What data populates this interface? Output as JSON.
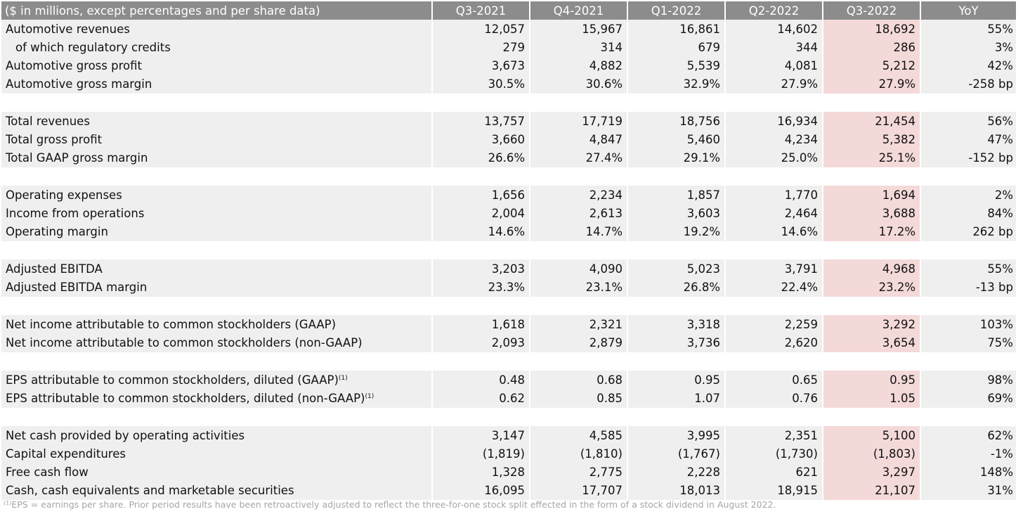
{
  "table": {
    "header_label": "($ in millions, except percentages and per share data)",
    "columns": [
      "Q3-2021",
      "Q4-2021",
      "Q1-2022",
      "Q2-2022",
      "Q3-2022",
      "YoY"
    ],
    "highlight_column": "Q3-2022",
    "colors": {
      "header_bg": "#8c8c8c",
      "row_bg": "#efefef",
      "highlight_bg": "#f4d9d9"
    },
    "groups": [
      {
        "rows": [
          {
            "label": "Automotive revenues",
            "values": [
              "12,057",
              "15,967",
              "16,861",
              "14,602",
              "18,692",
              "55%"
            ]
          },
          {
            "label": "of which regulatory credits",
            "indent": true,
            "values": [
              "279",
              "314",
              "679",
              "344",
              "286",
              "3%"
            ]
          },
          {
            "label": "Automotive gross profit",
            "values": [
              "3,673",
              "4,882",
              "5,539",
              "4,081",
              "5,212",
              "42%"
            ]
          },
          {
            "label": "Automotive gross margin",
            "values": [
              "30.5%",
              "30.6%",
              "32.9%",
              "27.9%",
              "27.9%",
              "-258 bp"
            ]
          }
        ]
      },
      {
        "rows": [
          {
            "label": "Total revenues",
            "values": [
              "13,757",
              "17,719",
              "18,756",
              "16,934",
              "21,454",
              "56%"
            ]
          },
          {
            "label": "Total gross profit",
            "values": [
              "3,660",
              "4,847",
              "5,460",
              "4,234",
              "5,382",
              "47%"
            ]
          },
          {
            "label": "Total GAAP gross margin",
            "values": [
              "26.6%",
              "27.4%",
              "29.1%",
              "25.0%",
              "25.1%",
              "-152 bp"
            ]
          }
        ]
      },
      {
        "rows": [
          {
            "label": "Operating expenses",
            "values": [
              "1,656",
              "2,234",
              "1,857",
              "1,770",
              "1,694",
              "2%"
            ]
          },
          {
            "label": "Income from operations",
            "values": [
              "2,004",
              "2,613",
              "3,603",
              "2,464",
              "3,688",
              "84%"
            ]
          },
          {
            "label": "Operating margin",
            "values": [
              "14.6%",
              "14.7%",
              "19.2%",
              "14.6%",
              "17.2%",
              "262 bp"
            ]
          }
        ]
      },
      {
        "rows": [
          {
            "label": "Adjusted EBITDA",
            "values": [
              "3,203",
              "4,090",
              "5,023",
              "3,791",
              "4,968",
              "55%"
            ]
          },
          {
            "label": "Adjusted EBITDA margin",
            "values": [
              "23.3%",
              "23.1%",
              "26.8%",
              "22.4%",
              "23.2%",
              "-13 bp"
            ]
          }
        ]
      },
      {
        "rows": [
          {
            "label": "Net income attributable to common stockholders (GAAP)",
            "values": [
              "1,618",
              "2,321",
              "3,318",
              "2,259",
              "3,292",
              "103%"
            ]
          },
          {
            "label": "Net income attributable to common stockholders (non-GAAP)",
            "values": [
              "2,093",
              "2,879",
              "3,736",
              "2,620",
              "3,654",
              "75%"
            ]
          }
        ]
      },
      {
        "rows": [
          {
            "label": "EPS attributable to common stockholders, diluted (GAAP)",
            "sup": "(1)",
            "values": [
              "0.48",
              "0.68",
              "0.95",
              "0.65",
              "0.95",
              "98%"
            ]
          },
          {
            "label": "EPS attributable to common stockholders, diluted (non-GAAP)",
            "sup": "(1)",
            "values": [
              "0.62",
              "0.85",
              "1.07",
              "0.76",
              "1.05",
              "69%"
            ]
          }
        ]
      },
      {
        "rows": [
          {
            "label": "Net cash provided by operating activities",
            "values": [
              "3,147",
              "4,585",
              "3,995",
              "2,351",
              "5,100",
              "62%"
            ]
          },
          {
            "label": "Capital expenditures",
            "values": [
              "(1,819)",
              "(1,810)",
              "(1,767)",
              "(1,730)",
              "(1,803)",
              "-1%"
            ]
          },
          {
            "label": "Free cash flow",
            "values": [
              "1,328",
              "2,775",
              "2,228",
              "621",
              "3,297",
              "148%"
            ]
          },
          {
            "label": "Cash, cash equivalents and marketable securities",
            "values": [
              "16,095",
              "17,707",
              "18,013",
              "18,915",
              "21,107",
              "31%"
            ]
          }
        ]
      }
    ]
  },
  "footnote": {
    "marker": "(1)",
    "text": "EPS = earnings per share. Prior period results have been retroactively adjusted to reflect the three-for-one stock split effected in the form of a stock dividend in August 2022."
  }
}
